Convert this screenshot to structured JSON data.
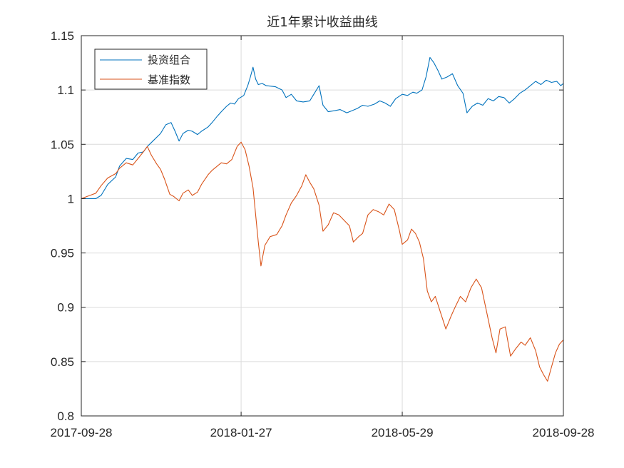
{
  "chart_data": {
    "type": "line",
    "title": "近1年累计收益曲线",
    "xlabel": "",
    "ylabel": "",
    "x_ticks": [
      "2017-09-28",
      "2018-01-27",
      "2018-05-29",
      "2018-09-28"
    ],
    "x_range": [
      "2017-09-28",
      "2018-09-28"
    ],
    "ylim": [
      0.8,
      1.15
    ],
    "y_ticks": [
      0.8,
      0.85,
      0.9,
      0.95,
      1,
      1.05,
      1.1,
      1.15
    ],
    "y_tick_labels": [
      "0.8",
      "0.85",
      "0.9",
      "0.95",
      "1",
      "1.05",
      "1.1",
      "1.15"
    ],
    "grid": true,
    "legend_position": "top-left",
    "colors": {
      "portfolio": "#0072BD",
      "benchmark": "#D95319",
      "grid": "#dcdcdc",
      "axis": "#262626"
    },
    "series": [
      {
        "name": "投资组合",
        "color": "#0072BD",
        "points": [
          [
            "2017-09-28",
            1.0
          ],
          [
            "2017-10-09",
            1.0
          ],
          [
            "2017-10-13",
            1.003
          ],
          [
            "2017-10-18",
            1.013
          ],
          [
            "2017-10-24",
            1.02
          ],
          [
            "2017-10-27",
            1.03
          ],
          [
            "2017-11-01",
            1.037
          ],
          [
            "2017-11-06",
            1.036
          ],
          [
            "2017-11-10",
            1.042
          ],
          [
            "2017-11-14",
            1.043
          ],
          [
            "2017-11-17",
            1.048
          ],
          [
            "2017-11-22",
            1.054
          ],
          [
            "2017-11-27",
            1.06
          ],
          [
            "2017-12-01",
            1.068
          ],
          [
            "2017-12-05",
            1.07
          ],
          [
            "2017-12-08",
            1.062
          ],
          [
            "2017-12-11",
            1.053
          ],
          [
            "2017-12-14",
            1.06
          ],
          [
            "2017-12-18",
            1.063
          ],
          [
            "2017-12-21",
            1.062
          ],
          [
            "2017-12-25",
            1.059
          ],
          [
            "2017-12-28",
            1.062
          ],
          [
            "2018-01-02",
            1.066
          ],
          [
            "2018-01-05",
            1.07
          ],
          [
            "2018-01-09",
            1.076
          ],
          [
            "2018-01-12",
            1.08
          ],
          [
            "2018-01-16",
            1.085
          ],
          [
            "2018-01-19",
            1.088
          ],
          [
            "2018-01-22",
            1.087
          ],
          [
            "2018-01-25",
            1.092
          ],
          [
            "2018-01-29",
            1.095
          ],
          [
            "2018-02-01",
            1.104
          ],
          [
            "2018-02-03",
            1.112
          ],
          [
            "2018-02-05",
            1.121
          ],
          [
            "2018-02-07",
            1.11
          ],
          [
            "2018-02-09",
            1.105
          ],
          [
            "2018-02-12",
            1.106
          ],
          [
            "2018-02-15",
            1.104
          ],
          [
            "2018-02-22",
            1.103
          ],
          [
            "2018-02-27",
            1.1
          ],
          [
            "2018-03-02",
            1.093
          ],
          [
            "2018-03-06",
            1.096
          ],
          [
            "2018-03-10",
            1.09
          ],
          [
            "2018-03-15",
            1.089
          ],
          [
            "2018-03-20",
            1.09
          ],
          [
            "2018-03-23",
            1.096
          ],
          [
            "2018-03-27",
            1.104
          ],
          [
            "2018-03-30",
            1.086
          ],
          [
            "2018-04-03",
            1.08
          ],
          [
            "2018-04-08",
            1.081
          ],
          [
            "2018-04-12",
            1.082
          ],
          [
            "2018-04-17",
            1.079
          ],
          [
            "2018-04-21",
            1.081
          ],
          [
            "2018-04-25",
            1.083
          ],
          [
            "2018-04-29",
            1.086
          ],
          [
            "2018-05-03",
            1.085
          ],
          [
            "2018-05-08",
            1.087
          ],
          [
            "2018-05-12",
            1.09
          ],
          [
            "2018-05-16",
            1.088
          ],
          [
            "2018-05-20",
            1.085
          ],
          [
            "2018-05-24",
            1.092
          ],
          [
            "2018-05-29",
            1.096
          ],
          [
            "2018-06-02",
            1.095
          ],
          [
            "2018-06-06",
            1.098
          ],
          [
            "2018-06-09",
            1.097
          ],
          [
            "2018-06-13",
            1.1
          ],
          [
            "2018-06-16",
            1.112
          ],
          [
            "2018-06-19",
            1.13
          ],
          [
            "2018-06-22",
            1.125
          ],
          [
            "2018-06-25",
            1.118
          ],
          [
            "2018-06-28",
            1.11
          ],
          [
            "2018-07-02",
            1.112
          ],
          [
            "2018-07-06",
            1.115
          ],
          [
            "2018-07-10",
            1.104
          ],
          [
            "2018-07-14",
            1.097
          ],
          [
            "2018-07-17",
            1.079
          ],
          [
            "2018-07-21",
            1.085
          ],
          [
            "2018-07-25",
            1.088
          ],
          [
            "2018-07-29",
            1.086
          ],
          [
            "2018-08-02",
            1.092
          ],
          [
            "2018-08-06",
            1.09
          ],
          [
            "2018-08-10",
            1.094
          ],
          [
            "2018-08-14",
            1.093
          ],
          [
            "2018-08-18",
            1.088
          ],
          [
            "2018-08-22",
            1.092
          ],
          [
            "2018-08-26",
            1.097
          ],
          [
            "2018-08-30",
            1.1
          ],
          [
            "2018-09-03",
            1.104
          ],
          [
            "2018-09-07",
            1.108
          ],
          [
            "2018-09-11",
            1.105
          ],
          [
            "2018-09-15",
            1.109
          ],
          [
            "2018-09-19",
            1.107
          ],
          [
            "2018-09-23",
            1.108
          ],
          [
            "2018-09-26",
            1.104
          ],
          [
            "2018-09-28",
            1.106
          ]
        ]
      },
      {
        "name": "基准指数",
        "color": "#D95319",
        "points": [
          [
            "2017-09-28",
            1.0
          ],
          [
            "2017-10-09",
            1.005
          ],
          [
            "2017-10-13",
            1.012
          ],
          [
            "2017-10-18",
            1.019
          ],
          [
            "2017-10-24",
            1.023
          ],
          [
            "2017-10-27",
            1.028
          ],
          [
            "2017-11-01",
            1.033
          ],
          [
            "2017-11-06",
            1.031
          ],
          [
            "2017-11-10",
            1.037
          ],
          [
            "2017-11-14",
            1.043
          ],
          [
            "2017-11-17",
            1.048
          ],
          [
            "2017-11-20",
            1.04
          ],
          [
            "2017-11-24",
            1.032
          ],
          [
            "2017-11-27",
            1.027
          ],
          [
            "2017-11-30",
            1.018
          ],
          [
            "2017-12-04",
            1.004
          ],
          [
            "2017-12-07",
            1.002
          ],
          [
            "2017-12-11",
            0.998
          ],
          [
            "2017-12-14",
            1.005
          ],
          [
            "2017-12-18",
            1.008
          ],
          [
            "2017-12-21",
            1.003
          ],
          [
            "2017-12-25",
            1.006
          ],
          [
            "2017-12-28",
            1.013
          ],
          [
            "2018-01-02",
            1.022
          ],
          [
            "2018-01-05",
            1.026
          ],
          [
            "2018-01-09",
            1.03
          ],
          [
            "2018-01-12",
            1.033
          ],
          [
            "2018-01-16",
            1.032
          ],
          [
            "2018-01-20",
            1.036
          ],
          [
            "2018-01-24",
            1.048
          ],
          [
            "2018-01-27",
            1.052
          ],
          [
            "2018-01-30",
            1.045
          ],
          [
            "2018-02-02",
            1.03
          ],
          [
            "2018-02-05",
            1.01
          ],
          [
            "2018-02-07",
            0.985
          ],
          [
            "2018-02-09",
            0.96
          ],
          [
            "2018-02-11",
            0.938
          ],
          [
            "2018-02-14",
            0.957
          ],
          [
            "2018-02-18",
            0.965
          ],
          [
            "2018-02-23",
            0.967
          ],
          [
            "2018-02-27",
            0.975
          ],
          [
            "2018-03-02",
            0.985
          ],
          [
            "2018-03-06",
            0.996
          ],
          [
            "2018-03-10",
            1.003
          ],
          [
            "2018-03-14",
            1.012
          ],
          [
            "2018-03-17",
            1.022
          ],
          [
            "2018-03-20",
            1.015
          ],
          [
            "2018-03-23",
            1.009
          ],
          [
            "2018-03-27",
            0.994
          ],
          [
            "2018-03-30",
            0.97
          ],
          [
            "2018-04-03",
            0.976
          ],
          [
            "2018-04-07",
            0.987
          ],
          [
            "2018-04-11",
            0.985
          ],
          [
            "2018-04-15",
            0.98
          ],
          [
            "2018-04-19",
            0.975
          ],
          [
            "2018-04-22",
            0.96
          ],
          [
            "2018-04-26",
            0.965
          ],
          [
            "2018-04-29",
            0.968
          ],
          [
            "2018-05-03",
            0.985
          ],
          [
            "2018-05-07",
            0.99
          ],
          [
            "2018-05-11",
            0.988
          ],
          [
            "2018-05-15",
            0.985
          ],
          [
            "2018-05-19",
            0.995
          ],
          [
            "2018-05-23",
            0.99
          ],
          [
            "2018-05-27",
            0.97
          ],
          [
            "2018-05-29",
            0.958
          ],
          [
            "2018-06-02",
            0.962
          ],
          [
            "2018-06-05",
            0.972
          ],
          [
            "2018-06-08",
            0.968
          ],
          [
            "2018-06-11",
            0.96
          ],
          [
            "2018-06-14",
            0.945
          ],
          [
            "2018-06-17",
            0.915
          ],
          [
            "2018-06-20",
            0.905
          ],
          [
            "2018-06-23",
            0.91
          ],
          [
            "2018-06-27",
            0.895
          ],
          [
            "2018-07-01",
            0.88
          ],
          [
            "2018-07-05",
            0.892
          ],
          [
            "2018-07-08",
            0.9
          ],
          [
            "2018-07-12",
            0.91
          ],
          [
            "2018-07-16",
            0.905
          ],
          [
            "2018-07-20",
            0.918
          ],
          [
            "2018-07-24",
            0.926
          ],
          [
            "2018-07-28",
            0.918
          ],
          [
            "2018-08-01",
            0.895
          ],
          [
            "2018-08-05",
            0.872
          ],
          [
            "2018-08-08",
            0.858
          ],
          [
            "2018-08-11",
            0.88
          ],
          [
            "2018-08-15",
            0.882
          ],
          [
            "2018-08-19",
            0.855
          ],
          [
            "2018-08-23",
            0.862
          ],
          [
            "2018-08-27",
            0.868
          ],
          [
            "2018-08-30",
            0.865
          ],
          [
            "2018-09-03",
            0.872
          ],
          [
            "2018-09-07",
            0.86
          ],
          [
            "2018-09-10",
            0.845
          ],
          [
            "2018-09-13",
            0.838
          ],
          [
            "2018-09-16",
            0.832
          ],
          [
            "2018-09-19",
            0.845
          ],
          [
            "2018-09-22",
            0.858
          ],
          [
            "2018-09-25",
            0.866
          ],
          [
            "2018-09-28",
            0.87
          ]
        ]
      }
    ]
  }
}
